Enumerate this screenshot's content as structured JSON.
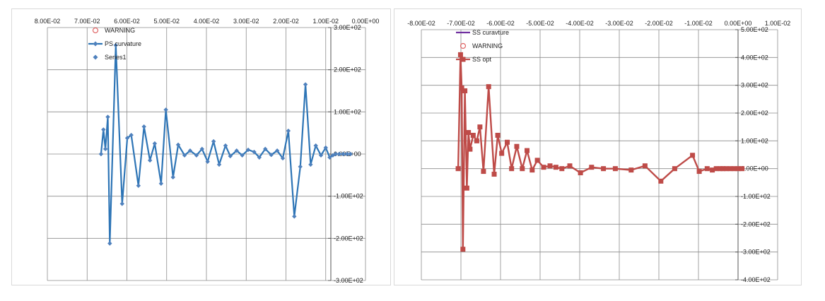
{
  "chart_data": [
    {
      "type": "line",
      "title": "",
      "xlabel": "",
      "ylabel": "",
      "xlim": [
        0.08,
        0.0
      ],
      "ylim": [
        -300,
        300
      ],
      "x_tick_labels": [
        "8.00E-02",
        "7.00E-02",
        "6.00E-02",
        "5.00E-02",
        "4.00E-02",
        "3.00E-02",
        "2.00E-02",
        "1.00E-02",
        "0.00E+00"
      ],
      "y_tick_labels": [
        "3.00E+02",
        "2.00E+02",
        "1.00E+02",
        "0.00E+00",
        "-1.00E+02",
        "-2.00E+02",
        "-3.00E+02"
      ],
      "grid": true,
      "legend_position": "top-left",
      "legend": [
        "WARNING",
        "PS curvature",
        "Series1"
      ],
      "series": [
        {
          "name": "PS curvature",
          "color": "#2e75b6",
          "marker_color": "#4f81bd",
          "x": [
            0.0665,
            0.0659,
            0.0654,
            0.0648,
            0.0643,
            0.0628,
            0.0612,
            0.0599,
            0.0589,
            0.0571,
            0.0557,
            0.0542,
            0.053,
            0.0514,
            0.0502,
            0.0484,
            0.0471,
            0.0455,
            0.0441,
            0.0425,
            0.0411,
            0.0397,
            0.0382,
            0.0368,
            0.0352,
            0.034,
            0.0324,
            0.031,
            0.0295,
            0.028,
            0.0267,
            0.0252,
            0.0237,
            0.0222,
            0.0208,
            0.0194,
            0.0179,
            0.0164,
            0.0151,
            0.0138,
            0.0125,
            0.0112,
            0.01,
            0.009,
            0.0082,
            0.0075,
            0.0066,
            0.0056,
            0.0046,
            0.0038
          ],
          "y": [
            0,
            58,
            12,
            88,
            -212,
            258,
            -118,
            38,
            45,
            -75,
            65,
            -15,
            25,
            -70,
            105,
            -55,
            22,
            -3,
            8,
            -3,
            12,
            -18,
            30,
            -25,
            20,
            -5,
            8,
            -3,
            10,
            5,
            -8,
            12,
            -2,
            8,
            -10,
            55,
            -148,
            -30,
            165,
            -25,
            20,
            -3,
            15,
            -8,
            -3,
            0,
            0,
            0,
            0,
            0
          ]
        }
      ]
    },
    {
      "type": "line",
      "title": "",
      "xlabel": "",
      "ylabel": "",
      "xlim": [
        -0.08,
        0.01
      ],
      "ylim": [
        -400,
        500
      ],
      "x_tick_labels": [
        "-8.00E-02",
        "-7.00E-02",
        "-6.00E-02",
        "-5.00E-02",
        "-4.00E-02",
        "-3.00E-02",
        "-2.00E-02",
        "-1.00E-02",
        "0.00E+00",
        "1.00E-02"
      ],
      "y_tick_labels": [
        "5.00E+02",
        "4.00E+02",
        "3.00E+02",
        "2.00E+02",
        "1.00E+02",
        "0.00E+00",
        "-1.00E+02",
        "-2.00E+02",
        "-3.00E+02",
        "-4.00E+02"
      ],
      "grid": true,
      "legend_position": "top-left",
      "legend": [
        "SS curavture",
        "WARNING",
        "SS opt"
      ],
      "series": [
        {
          "name": "SS opt",
          "color": "#be4b48",
          "x": [
            -0.0707,
            -0.0701,
            -0.0698,
            -0.0695,
            -0.069,
            -0.0685,
            -0.0681,
            -0.0677,
            -0.0669,
            -0.066,
            -0.0652,
            -0.0643,
            -0.063,
            -0.0616,
            -0.0607,
            -0.0597,
            -0.0583,
            -0.0572,
            -0.0559,
            -0.0545,
            -0.0533,
            -0.052,
            -0.0507,
            -0.0491,
            -0.0475,
            -0.046,
            -0.0445,
            -0.0425,
            -0.0398,
            -0.037,
            -0.034,
            -0.031,
            -0.027,
            -0.0235,
            -0.0195,
            -0.016,
            -0.0115,
            -0.0098,
            -0.0078,
            -0.0065,
            -0.0055,
            -0.0045,
            -0.0038,
            -0.003,
            -0.002,
            -0.001,
            0.0,
            0.001
          ],
          "y": [
            0,
            410,
            290,
            -290,
            280,
            -70,
            130,
            70,
            120,
            100,
            150,
            -10,
            295,
            -20,
            120,
            55,
            95,
            0,
            80,
            0,
            65,
            -5,
            30,
            5,
            10,
            5,
            0,
            10,
            -15,
            5,
            0,
            0,
            -5,
            10,
            -45,
            0,
            48,
            -10,
            0,
            -5,
            0,
            0,
            0,
            0,
            0,
            0,
            0,
            0
          ]
        },
        {
          "name": "SS curavture",
          "color": "#7030a0",
          "x": [],
          "y": []
        }
      ]
    }
  ]
}
